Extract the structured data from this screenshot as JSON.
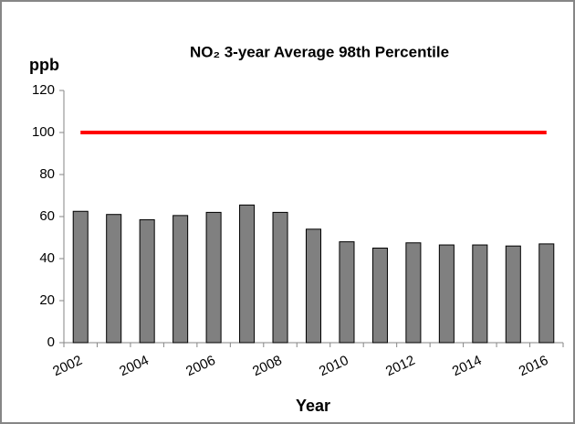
{
  "chart_data": {
    "type": "bar",
    "title": "NO₂ 3-year Average 98th Percentile",
    "y_label": "ppb",
    "x_label": "Year",
    "categories": [
      "2002",
      null,
      "2004",
      null,
      "2006",
      null,
      "2008",
      null,
      "2010",
      null,
      "2012",
      null,
      "2014",
      null,
      "2016"
    ],
    "values": [
      62.5,
      61,
      58.5,
      60.5,
      62,
      65.5,
      62,
      54,
      48,
      45,
      47.5,
      46.5,
      46.5,
      46,
      47
    ],
    "color": "#808080",
    "reference_line": 100,
    "reference_color": "#ff0000",
    "ylim": [
      0,
      120
    ],
    "yticks": [
      0,
      20,
      40,
      60,
      80,
      100,
      120
    ],
    "grid": false
  }
}
